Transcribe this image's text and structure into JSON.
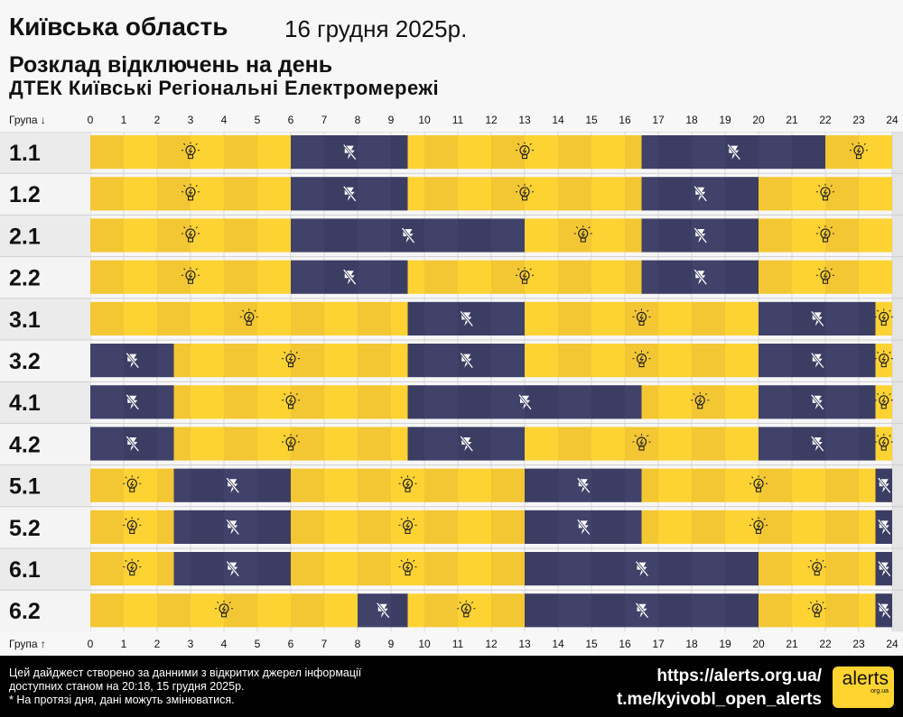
{
  "header": {
    "region": "Київська область",
    "date": "16 грудня 2025р.",
    "title": "Розклад відключень на день",
    "company": "ДТЕК Київські Регіональні Електромережі"
  },
  "axis": {
    "top_label": "Група ↓",
    "bottom_label": "Група ↑",
    "ticks": [
      "0",
      "1",
      "2",
      "3",
      "4",
      "5",
      "6",
      "7",
      "8",
      "9",
      "10",
      "11",
      "12",
      "13",
      "14",
      "15",
      "16",
      "17",
      "18",
      "19",
      "20",
      "21",
      "22",
      "23",
      "24"
    ]
  },
  "colors": {
    "on": "#fdd233",
    "on_alt": "#f3c633",
    "off": "#3b3d62",
    "off_alt": "#40426a",
    "grid": "#e6e6e6"
  },
  "chart_data": {
    "type": "timeline",
    "xlim": [
      0,
      24
    ],
    "legend": {
      "on": "bulb-icon",
      "off": "power-off-icon"
    },
    "groups": [
      {
        "name": "1.1",
        "off": [
          [
            6,
            9.5
          ],
          [
            16.5,
            22
          ]
        ]
      },
      {
        "name": "1.2",
        "off": [
          [
            6,
            9.5
          ],
          [
            16.5,
            20
          ]
        ]
      },
      {
        "name": "2.1",
        "off": [
          [
            6,
            13
          ],
          [
            16.5,
            20
          ]
        ]
      },
      {
        "name": "2.2",
        "off": [
          [
            6,
            9.5
          ],
          [
            16.5,
            20
          ]
        ]
      },
      {
        "name": "3.1",
        "off": [
          [
            9.5,
            13
          ],
          [
            20,
            23.5
          ]
        ]
      },
      {
        "name": "3.2",
        "off": [
          [
            0,
            2.5
          ],
          [
            9.5,
            13
          ],
          [
            20,
            23.5
          ]
        ]
      },
      {
        "name": "4.1",
        "off": [
          [
            0,
            2.5
          ],
          [
            9.5,
            16.5
          ],
          [
            20,
            23.5
          ]
        ]
      },
      {
        "name": "4.2",
        "off": [
          [
            0,
            2.5
          ],
          [
            9.5,
            13
          ],
          [
            20,
            23.5
          ]
        ]
      },
      {
        "name": "5.1",
        "off": [
          [
            2.5,
            6
          ],
          [
            13,
            16.5
          ],
          [
            23.5,
            24
          ]
        ]
      },
      {
        "name": "5.2",
        "off": [
          [
            2.5,
            6
          ],
          [
            13,
            16.5
          ],
          [
            23.5,
            24
          ]
        ]
      },
      {
        "name": "6.1",
        "off": [
          [
            2.5,
            6
          ],
          [
            13,
            20
          ],
          [
            23.5,
            24
          ]
        ]
      },
      {
        "name": "6.2",
        "off": [
          [
            8,
            9.5
          ],
          [
            13,
            20
          ],
          [
            23.5,
            24
          ]
        ]
      }
    ]
  },
  "footer": {
    "note1": "Цей дайджест створено за данними з відкритих джерел інформації",
    "note2": "доступних станом на 20:18, 15 грудня 2025р.",
    "note3": "* На протязі дня, дані можуть змінюватися.",
    "link1": "https://alerts.org.ua/",
    "link2": "t.me/kyivobl_open_alerts",
    "logo": "alerts",
    "logo_sub": "org.ua"
  }
}
